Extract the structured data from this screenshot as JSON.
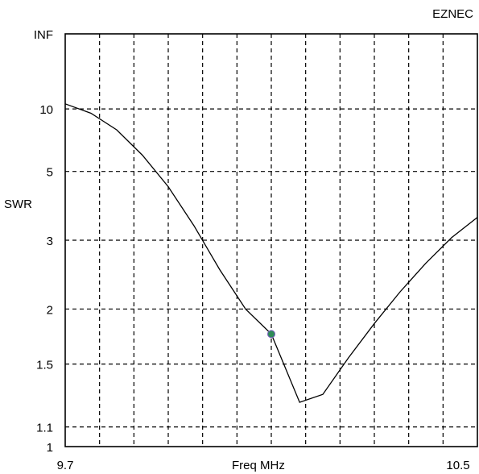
{
  "brand": "EZNEC",
  "chart_data": {
    "type": "line",
    "xlabel": "Freq MHz",
    "ylabel": "SWR",
    "xlim": [
      9.7,
      10.5
    ],
    "x_tick_labels": [
      "9.7",
      "10.5"
    ],
    "y_ticks": [
      {
        "label": "INF",
        "value": "inf"
      },
      {
        "label": "10",
        "value": 10
      },
      {
        "label": "5",
        "value": 5
      },
      {
        "label": "3",
        "value": 3
      },
      {
        "label": "2",
        "value": 2
      },
      {
        "label": "1.5",
        "value": 1.5
      },
      {
        "label": "1.1",
        "value": 1.1
      },
      {
        "label": "1",
        "value": 1
      }
    ],
    "grid": true,
    "series": [
      {
        "color": "#000000",
        "points": [
          {
            "x": 9.7,
            "y": 10.8
          },
          {
            "x": 9.75,
            "y": 9.4
          },
          {
            "x": 9.8,
            "y": 7.6
          },
          {
            "x": 9.85,
            "y": 5.8
          },
          {
            "x": 9.9,
            "y": 4.4
          },
          {
            "x": 9.95,
            "y": 3.3
          },
          {
            "x": 10.0,
            "y": 2.5
          },
          {
            "x": 10.05,
            "y": 2.0
          },
          {
            "x": 10.1,
            "y": 1.75
          },
          {
            "x": 10.155,
            "y": 1.24
          },
          {
            "x": 10.2,
            "y": 1.29
          },
          {
            "x": 10.25,
            "y": 1.55
          },
          {
            "x": 10.3,
            "y": 1.85
          },
          {
            "x": 10.35,
            "y": 2.2
          },
          {
            "x": 10.4,
            "y": 2.6
          },
          {
            "x": 10.45,
            "y": 3.05
          },
          {
            "x": 10.5,
            "y": 3.5
          }
        ]
      }
    ],
    "marker": {
      "x": 10.1,
      "y": 1.75,
      "color": "#2e8b57"
    }
  }
}
